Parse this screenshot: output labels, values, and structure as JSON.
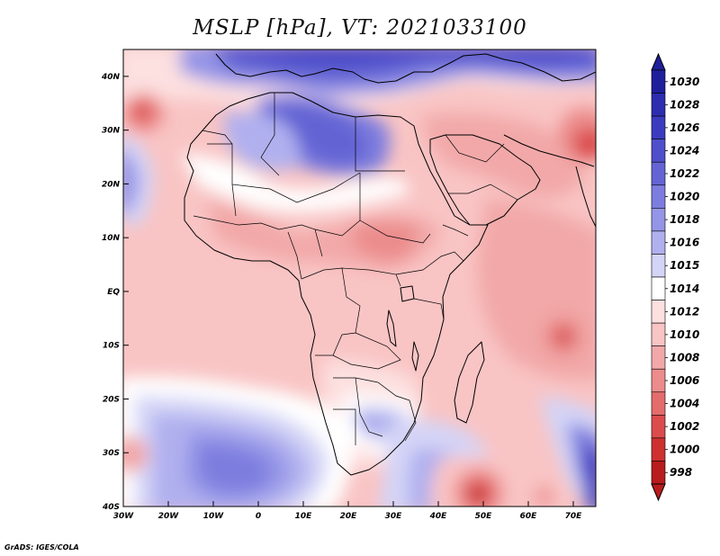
{
  "title": "MSLP [hPa], VT: 2021033100",
  "credit": "GrADS: IGES/COLA",
  "map": {
    "lon_range": [
      -30,
      75
    ],
    "lat_range": [
      -40,
      45
    ],
    "x_ticks": [
      "30W",
      "20W",
      "10W",
      "0",
      "10E",
      "20E",
      "30E",
      "40E",
      "50E",
      "60E",
      "70E"
    ],
    "y_ticks": [
      "40N",
      "30N",
      "20N",
      "10N",
      "EQ",
      "10S",
      "20S",
      "30S",
      "40S"
    ]
  },
  "colorbar": {
    "levels": [
      "1030",
      "1028",
      "1026",
      "1024",
      "1022",
      "1020",
      "1018",
      "1016",
      "1015",
      "1014",
      "1012",
      "1010",
      "1008",
      "1006",
      "1004",
      "1002",
      "1000",
      "998"
    ],
    "colors": [
      "#1f1f9c",
      "#2d2db0",
      "#3b3bbf",
      "#4f4fcb",
      "#6464d4",
      "#7d7ddf",
      "#9595e7",
      "#b0b0ef",
      "#d4d4f7",
      "#ffffff",
      "#fde0e0",
      "#f9c4c4",
      "#f2a8a8",
      "#ec8c8c",
      "#e46c6c",
      "#db4c4c",
      "#cf3030",
      "#b81c1c"
    ]
  }
}
